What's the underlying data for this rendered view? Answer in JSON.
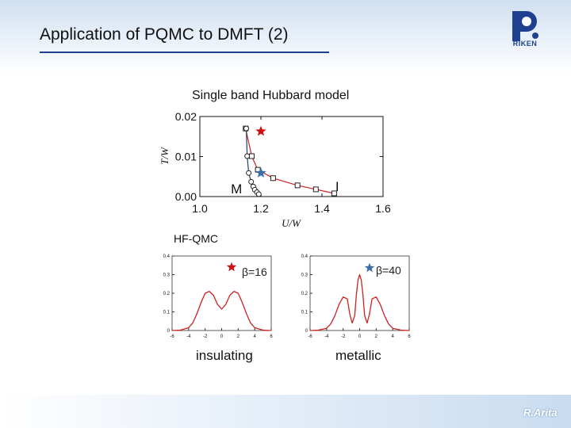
{
  "slide": {
    "title": "Application of PQMC to DMFT (2)",
    "logo_text": "RIKEN",
    "footer_signature": "R.Arita"
  },
  "labels": {
    "main_title": "Single band Hubbard model",
    "hf_qmc": "HF-QMC",
    "insulating": "insulating",
    "metallic": "metallic"
  },
  "colors": {
    "red_series": "#cc2222",
    "blue_series": "#1e3f6e",
    "blue_star": "#3a6fa8",
    "red_star": "#cc1111",
    "title_rule": "#1f3f8f"
  },
  "chart_data": [
    {
      "type": "line",
      "title": "Single band Hubbard model",
      "xlabel": "U/W",
      "ylabel": "T/W",
      "xlim": [
        1.0,
        1.6
      ],
      "ylim": [
        0.0,
        0.02
      ],
      "xticks": [
        "1.0",
        "1.2",
        "1.4",
        "1.6"
      ],
      "yticks": [
        "0.00",
        "0.01",
        "0.02"
      ],
      "grid": false,
      "series": [
        {
          "color": "red",
          "marker": "square",
          "x": [
            1.15,
            1.17,
            1.19,
            1.24,
            1.32,
            1.38,
            1.44
          ],
          "y": [
            0.017,
            0.0101,
            0.0067,
            0.0046,
            0.0028,
            0.0018,
            0.0008
          ]
        },
        {
          "color": "navy",
          "marker": "circle",
          "x": [
            1.152,
            1.155,
            1.16,
            1.168,
            1.175,
            1.18,
            1.187,
            1.193
          ],
          "y": [
            0.017,
            0.0101,
            0.0059,
            0.0037,
            0.0025,
            0.0017,
            0.0011,
            0.0006
          ]
        }
      ],
      "annotations": [
        {
          "text": "M",
          "x": 1.12,
          "y": 0.0022
        },
        {
          "text": "I",
          "x": 1.45,
          "y": 0.0028
        }
      ],
      "markers": [
        {
          "shape": "star",
          "color": "red",
          "x": 1.2,
          "y": 0.0163
        },
        {
          "shape": "star",
          "color": "blue",
          "x": 1.2,
          "y": 0.0059
        }
      ]
    },
    {
      "type": "line",
      "title": "",
      "legend": "β=16",
      "xlim": [
        -6,
        6
      ],
      "ylim": [
        0,
        0.4
      ],
      "xticks": [
        "-6",
        "-4",
        "-2",
        "0",
        "2",
        "4",
        "6"
      ],
      "yticks": [
        "0",
        "0.1",
        "0.2",
        "0.3",
        "0.4"
      ],
      "series": [
        {
          "color": "red",
          "x": [
            -6,
            -5,
            -4,
            -3.5,
            -3,
            -2.5,
            -2,
            -1.5,
            -1,
            -0.5,
            0,
            0.5,
            1,
            1.5,
            2,
            2.5,
            3,
            3.5,
            4,
            5,
            6
          ],
          "y": [
            0,
            0.002,
            0.015,
            0.04,
            0.09,
            0.15,
            0.2,
            0.21,
            0.19,
            0.14,
            0.115,
            0.14,
            0.19,
            0.21,
            0.2,
            0.15,
            0.09,
            0.04,
            0.015,
            0.002,
            0
          ]
        }
      ]
    },
    {
      "type": "line",
      "title": "",
      "legend": "β=40",
      "xlim": [
        -6,
        6
      ],
      "ylim": [
        0,
        0.4
      ],
      "xticks": [
        "-6",
        "-4",
        "-2",
        "0",
        "2",
        "4",
        "6"
      ],
      "yticks": [
        "0",
        "0.1",
        "0.2",
        "0.3",
        "0.4"
      ],
      "series": [
        {
          "color": "red",
          "x": [
            -6,
            -5,
            -4,
            -3.5,
            -3,
            -2.5,
            -2,
            -1.5,
            -1.2,
            -0.9,
            -0.6,
            -0.4,
            -0.2,
            0,
            0.2,
            0.4,
            0.6,
            0.9,
            1.2,
            1.5,
            2,
            2.5,
            3,
            3.5,
            4,
            5,
            6
          ],
          "y": [
            0,
            0.002,
            0.012,
            0.035,
            0.08,
            0.14,
            0.18,
            0.17,
            0.09,
            0.04,
            0.08,
            0.19,
            0.27,
            0.3,
            0.27,
            0.19,
            0.08,
            0.04,
            0.09,
            0.17,
            0.18,
            0.14,
            0.08,
            0.035,
            0.012,
            0.002,
            0
          ]
        }
      ]
    }
  ]
}
